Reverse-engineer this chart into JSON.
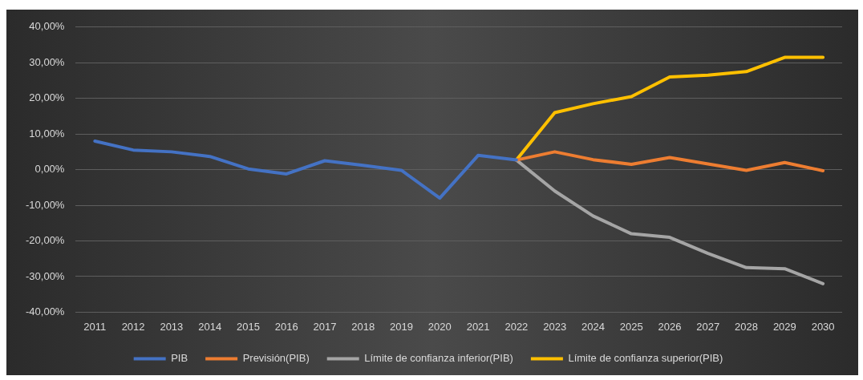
{
  "chart_data": {
    "type": "line",
    "categories": [
      "2011",
      "2012",
      "2013",
      "2014",
      "2015",
      "2016",
      "2017",
      "2018",
      "2019",
      "2020",
      "2021",
      "2022",
      "2023",
      "2024",
      "2025",
      "2026",
      "2027",
      "2028",
      "2029",
      "2030"
    ],
    "series": [
      {
        "name": "PIB",
        "color": "#4472c4",
        "values": [
          8,
          5.5,
          5,
          3.7,
          0.2,
          -1.2,
          2.5,
          1.2,
          -0.2,
          -8,
          4,
          2.7,
          null,
          null,
          null,
          null,
          null,
          null,
          null,
          null
        ]
      },
      {
        "name": "Previsión(PIB)",
        "color": "#ed7d31",
        "values": [
          null,
          null,
          null,
          null,
          null,
          null,
          null,
          null,
          null,
          null,
          null,
          2.7,
          5,
          2.8,
          1.5,
          3.4,
          1.6,
          -0.2,
          2,
          -0.3
        ]
      },
      {
        "name": "Límite de confianza inferior(PIB)",
        "color": "#a5a5a5",
        "values": [
          null,
          null,
          null,
          null,
          null,
          null,
          null,
          null,
          null,
          null,
          null,
          2.7,
          -6,
          -13,
          -18,
          -19,
          -23.5,
          -27.5,
          -27.8,
          -32
        ]
      },
      {
        "name": "Límite de confianza superior(PIB)",
        "color": "#ffc000",
        "values": [
          null,
          null,
          null,
          null,
          null,
          null,
          null,
          null,
          null,
          null,
          null,
          2.7,
          16,
          18.5,
          20.5,
          26,
          26.5,
          27.5,
          31.5,
          31.5
        ]
      }
    ],
    "ylim": [
      -40,
      40
    ],
    "yticks": [
      {
        "value": -40,
        "label": "-40,00%"
      },
      {
        "value": -30,
        "label": "-30,00%"
      },
      {
        "value": -20,
        "label": "-20,00%"
      },
      {
        "value": -10,
        "label": "-10,00%"
      },
      {
        "value": 0,
        "label": "0,00%"
      },
      {
        "value": 10,
        "label": "10,00%"
      },
      {
        "value": 20,
        "label": "20,00%"
      },
      {
        "value": 30,
        "label": "30,00%"
      },
      {
        "value": 40,
        "label": "40,00%"
      }
    ],
    "grid": "y",
    "legend": "bottom",
    "marker": "none",
    "line_style": "solid"
  }
}
